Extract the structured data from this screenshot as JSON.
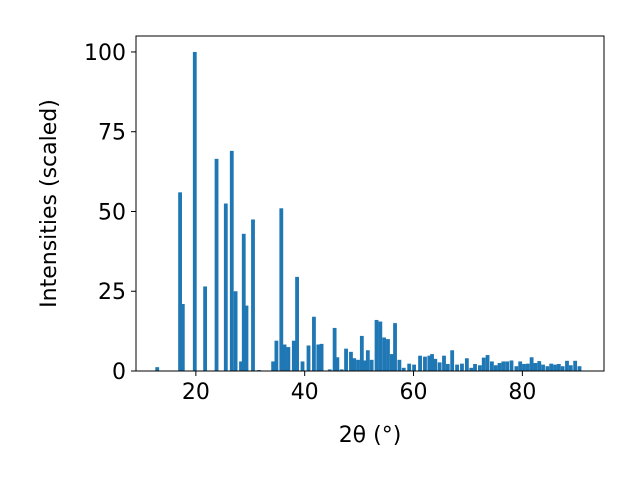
{
  "chart_data": {
    "type": "bar",
    "title": "",
    "xlabel": "2θ (°)",
    "ylabel": "Intensities (scaled)",
    "xlim": [
      9,
      95
    ],
    "ylim": [
      0,
      105
    ],
    "xticks": [
      20,
      40,
      60,
      80
    ],
    "yticks": [
      0,
      25,
      50,
      75,
      100
    ],
    "grid": false,
    "bar_color": "#1f77b4",
    "bar_width": 0.7,
    "x": [
      12.9,
      17.1,
      17.6,
      19.8,
      21.7,
      23.8,
      25.5,
      26.6,
      27.3,
      28.3,
      28.8,
      29.3,
      30.5,
      31.6,
      34.2,
      34.8,
      35.7,
      36.3,
      37.0,
      38.0,
      38.6,
      39.6,
      40.7,
      41.7,
      42.5,
      43.1,
      44.6,
      45.5,
      46.0,
      46.8,
      47.6,
      48.5,
      49.1,
      49.8,
      50.5,
      51.0,
      51.6,
      52.3,
      53.2,
      53.9,
      54.6,
      55.3,
      56.0,
      56.6,
      57.4,
      58.2,
      59.2,
      60.1,
      61.2,
      62.1,
      62.9,
      63.4,
      64.0,
      64.8,
      65.6,
      66.3,
      67.1,
      68.0,
      68.9,
      69.8,
      70.6,
      71.3,
      72.2,
      72.9,
      73.6,
      74.4,
      75.1,
      75.8,
      76.5,
      77.2,
      78.0,
      78.9,
      79.6,
      80.3,
      81.0,
      81.7,
      82.4,
      83.1,
      83.8,
      84.6,
      85.3,
      86.0,
      86.7,
      87.4,
      88.2,
      88.9,
      89.7,
      90.5
    ],
    "values": [
      1.2,
      56,
      21,
      100,
      26.5,
      66.5,
      52.5,
      69,
      25,
      3,
      43,
      20.5,
      47.5,
      0.3,
      3,
      9.5,
      51,
      8.3,
      7.5,
      9.5,
      29.5,
      3,
      8,
      17,
      8.3,
      8.5,
      0.5,
      13.5,
      4.3,
      0.5,
      7,
      6,
      4,
      3.5,
      11,
      3.3,
      6.5,
      3.5,
      16,
      15.5,
      10.5,
      10,
      5.3,
      15,
      3.5,
      1,
      2.3,
      2,
      4.8,
      4.5,
      4.8,
      5.3,
      3.8,
      2.7,
      4.8,
      2.2,
      6.5,
      2,
      2.3,
      4,
      1,
      2.2,
      1.8,
      4.2,
      5,
      3,
      1.8,
      2.5,
      3,
      3,
      3.3,
      1.5,
      3,
      2.2,
      2.3,
      4.3,
      2.5,
      3.1,
      2,
      1.5,
      2.3,
      2,
      2.2,
      1.5,
      3.2,
      1.8,
      3.2,
      1.5
    ]
  }
}
